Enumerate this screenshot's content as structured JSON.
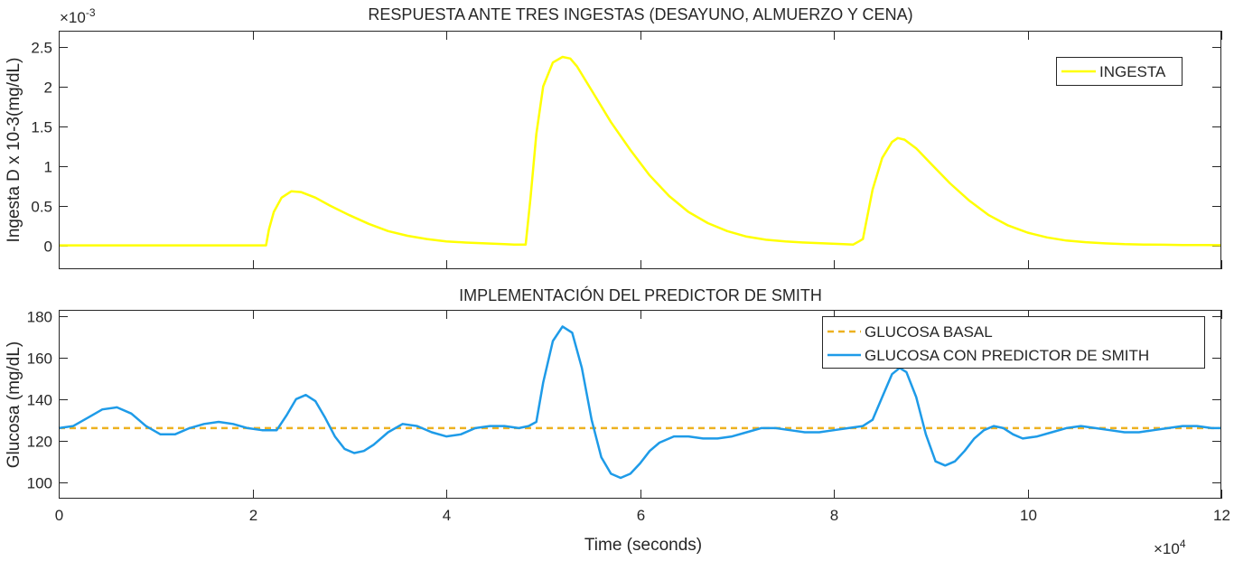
{
  "chart_data": [
    {
      "type": "line",
      "title": "RESPUESTA ANTE TRES INGESTAS (DESAYUNO, ALMUERZO Y CENA)",
      "xlabel": "",
      "ylabel": "Ingesta D x 10-3(mg/dL)",
      "y_exponent_label": "×10",
      "y_exponent": "-3",
      "xlim": [
        0,
        120000
      ],
      "ylim": [
        -0.3,
        2.7
      ],
      "yticks": [
        0,
        0.5,
        1,
        1.5,
        2,
        2.5
      ],
      "ytick_labels": [
        "0",
        "0.5",
        "1",
        "1.5",
        "2",
        "2.5"
      ],
      "xticks": [
        0,
        20000,
        40000,
        60000,
        80000,
        100000,
        120000
      ],
      "grid": false,
      "legend_position": "top-right",
      "series": [
        {
          "name": "INGESTA",
          "color": "#ffff00",
          "style": "solid",
          "x": [
            0,
            21400,
            21700,
            22200,
            23000,
            24000,
            25000,
            26500,
            28000,
            30000,
            32000,
            34000,
            36000,
            38000,
            40000,
            42000,
            44000,
            46000,
            47000,
            48200,
            48700,
            49300,
            50000,
            51000,
            52000,
            52800,
            53500,
            55000,
            57000,
            59000,
            61000,
            63000,
            65000,
            67000,
            69000,
            71000,
            73000,
            75000,
            77000,
            79000,
            81000,
            82000,
            82600,
            83000,
            84000,
            85000,
            86000,
            86600,
            87300,
            88500,
            90000,
            92000,
            94000,
            96000,
            98000,
            100000,
            102000,
            104000,
            106000,
            108000,
            110000,
            112000,
            114000,
            116000,
            118000,
            120000
          ],
          "y": [
            0,
            0,
            0.2,
            0.42,
            0.6,
            0.68,
            0.67,
            0.6,
            0.5,
            0.38,
            0.27,
            0.18,
            0.12,
            0.08,
            0.05,
            0.035,
            0.025,
            0.015,
            0.01,
            0.01,
            0.6,
            1.4,
            2.0,
            2.3,
            2.37,
            2.35,
            2.25,
            1.95,
            1.55,
            1.2,
            0.88,
            0.62,
            0.42,
            0.28,
            0.18,
            0.11,
            0.07,
            0.05,
            0.035,
            0.025,
            0.015,
            0.01,
            0.05,
            0.08,
            0.7,
            1.1,
            1.3,
            1.35,
            1.33,
            1.22,
            1.03,
            0.78,
            0.56,
            0.38,
            0.25,
            0.16,
            0.1,
            0.06,
            0.04,
            0.025,
            0.015,
            0.01,
            0.008,
            0.005,
            0.003,
            0.002
          ]
        }
      ]
    },
    {
      "type": "line",
      "title": "IMPLEMENTACIÓN DEL PREDICTOR DE SMITH",
      "xlabel": "Time (seconds)",
      "ylabel": "Glucosa (mg/dL)",
      "x_exponent_label": "×10",
      "x_exponent": "4",
      "xlim": [
        0,
        120000
      ],
      "ylim": [
        92,
        183
      ],
      "yticks": [
        100,
        120,
        140,
        160,
        180
      ],
      "ytick_labels": [
        "100",
        "120",
        "140",
        "160",
        "180"
      ],
      "xticks": [
        0,
        20000,
        40000,
        60000,
        80000,
        100000,
        120000
      ],
      "xtick_labels": [
        "0",
        "2",
        "4",
        "6",
        "8",
        "10",
        "12"
      ],
      "grid": false,
      "legend_position": "top-right",
      "series": [
        {
          "name": "GLUCOSA BASAL",
          "color": "#edb120",
          "style": "dashed",
          "x": [
            0,
            120000
          ],
          "y": [
            126,
            126
          ]
        },
        {
          "name": "GLUCOSA CON PREDICTOR DE SMITH",
          "color": "#1e9be8",
          "style": "solid",
          "x": [
            0,
            1500,
            3000,
            4500,
            6000,
            7500,
            9000,
            10500,
            12000,
            13500,
            15000,
            16500,
            18000,
            19500,
            21000,
            22500,
            23500,
            24500,
            25500,
            26500,
            27500,
            28500,
            29500,
            30500,
            31500,
            32500,
            34000,
            35500,
            37000,
            38500,
            40000,
            41500,
            43000,
            44500,
            46000,
            47500,
            48500,
            49300,
            50000,
            51000,
            52000,
            53000,
            54000,
            55000,
            56000,
            57000,
            58000,
            59000,
            60000,
            61000,
            62000,
            63500,
            65000,
            66500,
            68000,
            69500,
            71000,
            72500,
            74000,
            75500,
            77000,
            78500,
            80000,
            81500,
            83000,
            84000,
            85000,
            86000,
            86800,
            87500,
            88500,
            89500,
            90500,
            91500,
            92500,
            93500,
            94500,
            95500,
            96500,
            97500,
            98500,
            99500,
            101000,
            102500,
            104000,
            105500,
            107000,
            108500,
            110000,
            111500,
            113000,
            114500,
            116000,
            117500,
            119000,
            120000
          ],
          "y": [
            126,
            127,
            131,
            135,
            136,
            133,
            127,
            123,
            123,
            126,
            128,
            129,
            128,
            126,
            125,
            125,
            132,
            140,
            142,
            139,
            131,
            122,
            116,
            114,
            115,
            118,
            124,
            128,
            127,
            124,
            122,
            123,
            126,
            127,
            127,
            126,
            127,
            129,
            148,
            168,
            175,
            172,
            155,
            130,
            112,
            104,
            102,
            104,
            109,
            115,
            119,
            122,
            122,
            121,
            121,
            122,
            124,
            126,
            126,
            125,
            124,
            124,
            125,
            126,
            127,
            130,
            141,
            152,
            155,
            153,
            141,
            123,
            110,
            108,
            110,
            115,
            121,
            125,
            127,
            126,
            123,
            121,
            122,
            124,
            126,
            127,
            126,
            125,
            124,
            124,
            125,
            126,
            127,
            127,
            126,
            126
          ]
        }
      ]
    }
  ]
}
